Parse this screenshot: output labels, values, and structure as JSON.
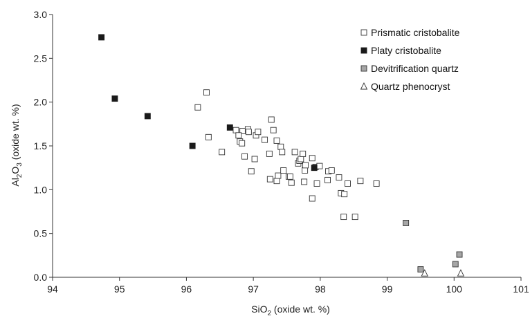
{
  "chart_data": {
    "type": "scatter",
    "title": "",
    "xlabel": {
      "main": "SiO",
      "sub": "2",
      "rest": " (oxide wt. %)"
    },
    "ylabel": {
      "main": "Al",
      "sub": "2",
      "mid": "O",
      "sub2": "3",
      "rest": " (oxide wt. %)"
    },
    "xlim": [
      94,
      101
    ],
    "ylim": [
      0,
      3.0
    ],
    "xticks": [
      "94",
      "95",
      "96",
      "97",
      "98",
      "99",
      "100",
      "101"
    ],
    "yticks": [
      "0.0",
      "0.5",
      "1.0",
      "1.5",
      "2.0",
      "2.5",
      "3.0"
    ],
    "grid": false,
    "legend_position": "top-right",
    "series": [
      {
        "name": "Prismatic cristobalite",
        "marker": "square",
        "fill": "#ffffff",
        "stroke": "#333333",
        "points": [
          [
            96.3,
            2.11
          ],
          [
            96.17,
            1.94
          ],
          [
            96.33,
            1.6
          ],
          [
            96.53,
            1.43
          ],
          [
            96.74,
            1.68
          ],
          [
            96.8,
            1.55
          ],
          [
            96.83,
            1.53
          ],
          [
            96.84,
            1.67
          ],
          [
            96.87,
            1.38
          ],
          [
            96.92,
            1.69
          ],
          [
            96.93,
            1.66
          ],
          [
            96.78,
            1.62
          ],
          [
            96.97,
            1.21
          ],
          [
            97.02,
            1.35
          ],
          [
            97.04,
            1.62
          ],
          [
            97.07,
            1.66
          ],
          [
            97.17,
            1.57
          ],
          [
            97.27,
            1.8
          ],
          [
            97.3,
            1.68
          ],
          [
            97.35,
            1.56
          ],
          [
            97.41,
            1.49
          ],
          [
            97.43,
            1.43
          ],
          [
            97.24,
            1.41
          ],
          [
            97.25,
            1.12
          ],
          [
            97.35,
            1.1
          ],
          [
            97.37,
            1.16
          ],
          [
            97.45,
            1.22
          ],
          [
            97.53,
            1.15
          ],
          [
            97.55,
            1.15
          ],
          [
            97.57,
            1.08
          ],
          [
            97.62,
            1.43
          ],
          [
            97.67,
            1.3
          ],
          [
            97.69,
            1.33
          ],
          [
            97.71,
            1.35
          ],
          [
            97.74,
            1.41
          ],
          [
            97.77,
            1.22
          ],
          [
            97.78,
            1.28
          ],
          [
            97.76,
            1.09
          ],
          [
            97.88,
            1.36
          ],
          [
            97.93,
            1.26
          ],
          [
            97.99,
            1.27
          ],
          [
            97.95,
            1.07
          ],
          [
            98.12,
            1.21
          ],
          [
            98.17,
            1.22
          ],
          [
            98.11,
            1.11
          ],
          [
            98.28,
            1.14
          ],
          [
            98.31,
            0.96
          ],
          [
            98.36,
            0.95
          ],
          [
            98.35,
            0.69
          ],
          [
            98.41,
            1.07
          ],
          [
            98.52,
            0.69
          ],
          [
            98.6,
            1.1
          ],
          [
            98.84,
            1.07
          ],
          [
            97.88,
            0.9
          ]
        ]
      },
      {
        "name": "Platy cristobalite",
        "marker": "square",
        "fill": "#1a1a1a",
        "stroke": "#1a1a1a",
        "points": [
          [
            94.73,
            2.74
          ],
          [
            94.93,
            2.04
          ],
          [
            95.42,
            1.84
          ],
          [
            96.09,
            1.5
          ],
          [
            96.65,
            1.71
          ],
          [
            97.91,
            1.25
          ]
        ]
      },
      {
        "name": "Devitrification quartz",
        "marker": "square",
        "fill": "#a6a6a6",
        "stroke": "#333333",
        "points": [
          [
            99.28,
            0.62
          ],
          [
            99.5,
            0.09
          ],
          [
            100.02,
            0.15
          ],
          [
            100.08,
            0.26
          ]
        ]
      },
      {
        "name": "Quartz phenocryst",
        "marker": "triangle",
        "fill": "#ffffff",
        "stroke": "#333333",
        "points": [
          [
            99.56,
            0.03
          ],
          [
            100.1,
            0.03
          ]
        ]
      }
    ]
  }
}
